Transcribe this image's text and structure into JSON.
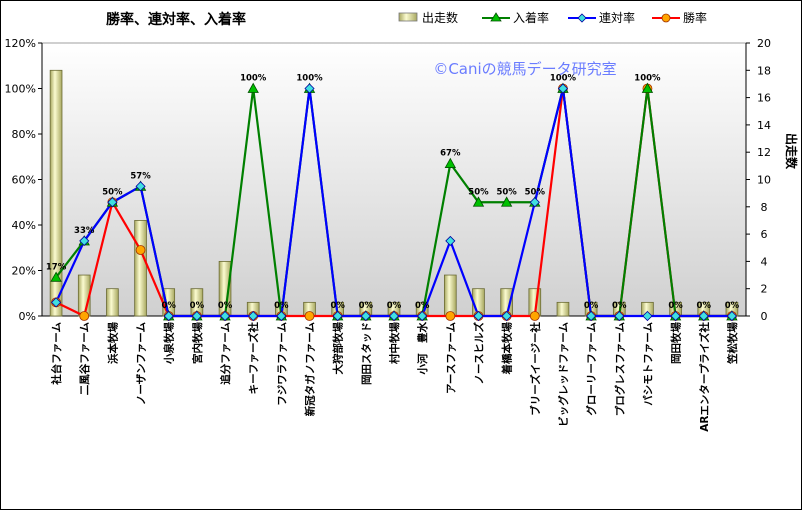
{
  "chart_data": {
    "type": "bar+line",
    "title": "勝率、連対率、入着率",
    "watermark": "©Caniの競馬データ研究室",
    "ylabel_right": "出走数",
    "ylim_left": [
      0,
      120
    ],
    "ylim_right": [
      0,
      20
    ],
    "left_ticks": [
      "0%",
      "20%",
      "40%",
      "60%",
      "80%",
      "100%",
      "120%"
    ],
    "right_ticks": [
      "0",
      "2",
      "4",
      "6",
      "8",
      "10",
      "12",
      "14",
      "16",
      "18",
      "20"
    ],
    "categories": [
      "社台ファーム",
      "二風谷ファーム",
      "浜本牧場",
      "ノーザンファーム",
      "小泉牧場",
      "宮内牧場",
      "追分ファーム",
      "キーファーズ社",
      "フジワラファーム",
      "新冠タガノファーム",
      "大狩部牧場",
      "岡田スタッド",
      "村中牧場",
      "小河　豊水",
      "アースファーム",
      "ノースヒルズ",
      "着橋本牧場",
      "ブリーズイージー社",
      "ビッグレッドファーム",
      "グローリーファーム",
      "プログレスファーム",
      "パシモトファーム",
      "岡田牧場",
      "ARエンタープライズ社",
      "笠松牧場"
    ],
    "series": [
      {
        "name": "出走数",
        "type": "bar",
        "axis": "right",
        "color": "#e6e6a0",
        "values": [
          18,
          3,
          2,
          7,
          2,
          2,
          4,
          1,
          1,
          1,
          1,
          1,
          1,
          1,
          3,
          2,
          2,
          2,
          1,
          1,
          1,
          1,
          1,
          1,
          1
        ]
      },
      {
        "name": "入着率",
        "type": "line",
        "axis": "left",
        "color": "#008000",
        "marker": "triangle",
        "values": [
          17,
          33,
          50,
          57,
          0,
          0,
          0,
          100,
          0,
          100,
          0,
          0,
          0,
          0,
          67,
          50,
          50,
          50,
          100,
          0,
          0,
          100,
          0,
          0,
          0
        ]
      },
      {
        "name": "連対率",
        "type": "line",
        "axis": "left",
        "color": "#0000ff",
        "marker": "diamond",
        "values": [
          6,
          33,
          50,
          57,
          0,
          0,
          0,
          0,
          0,
          100,
          0,
          0,
          0,
          0,
          33,
          0,
          0,
          50,
          100,
          0,
          0,
          0,
          0,
          0,
          0
        ]
      },
      {
        "name": "勝率",
        "type": "line",
        "axis": "left",
        "color": "#ff0000",
        "marker": "circle",
        "values": [
          6,
          0,
          50,
          29,
          0,
          0,
          0,
          0,
          0,
          0,
          0,
          0,
          0,
          0,
          0,
          0,
          0,
          0,
          100,
          0,
          0,
          100,
          0,
          0,
          0
        ]
      }
    ],
    "data_labels": [
      "17%",
      "33%",
      "50%",
      "57%",
      "0%",
      "0%",
      "0%",
      "100%",
      "0%",
      "100%",
      "0%",
      "0%",
      "0%",
      "0%",
      "67%",
      "50%",
      "50%",
      "50%",
      "100%",
      "0%",
      "0%",
      "100%",
      "0%",
      "0%",
      "0%"
    ],
    "legend_position": "top",
    "grid": "none",
    "plot_background": "gradient gray"
  }
}
